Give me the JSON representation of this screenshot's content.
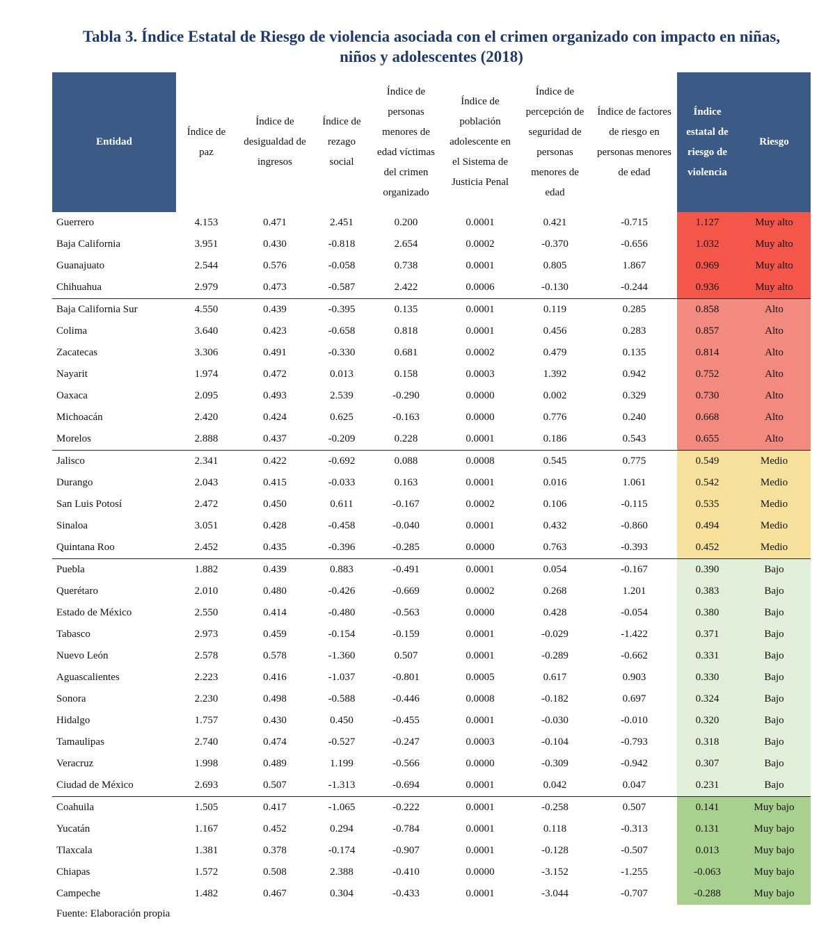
{
  "title": "Tabla 3. Índice Estatal de Riesgo de violencia asociada con el crimen organizado con impacto en niñas, niños y adolescentes (2018)",
  "table": {
    "headers": [
      "Entidad",
      "Índice de paz",
      "Índice de desigualdad de ingresos",
      "Índice de rezago social",
      "Índice de personas menores de edad víctimas del crimen organizado",
      "Índice de población adolescente en el Sistema de Justicia Penal",
      "Índice de percepción de seguridad de personas menores de edad",
      "Índice de factores de riesgo en personas menores de edad",
      "Índice estatal de riesgo de violencia",
      "Riesgo"
    ],
    "groups": [
      {
        "color": "#f4574a",
        "rows": [
          [
            "Guerrero",
            "4.153",
            "0.471",
            "2.451",
            "0.200",
            "0.0001",
            "0.421",
            "-0.715",
            "1.127",
            "Muy alto"
          ],
          [
            "Baja California",
            "3.951",
            "0.430",
            "-0.818",
            "2.654",
            "0.0002",
            "-0.370",
            "-0.656",
            "1.032",
            "Muy alto"
          ],
          [
            "Guanajuato",
            "2.544",
            "0.576",
            "-0.058",
            "0.738",
            "0.0001",
            "0.805",
            "1.867",
            "0.969",
            "Muy alto"
          ],
          [
            "Chihuahua",
            "2.979",
            "0.473",
            "-0.587",
            "2.422",
            "0.0006",
            "-0.130",
            "-0.244",
            "0.936",
            "Muy alto"
          ]
        ]
      },
      {
        "color": "#f28a80",
        "rows": [
          [
            "Baja California Sur",
            "4.550",
            "0.439",
            "-0.395",
            "0.135",
            "0.0001",
            "0.119",
            "0.285",
            "0.858",
            "Alto"
          ],
          [
            "Colima",
            "3.640",
            "0.423",
            "-0.658",
            "0.818",
            "0.0001",
            "0.456",
            "0.283",
            "0.857",
            "Alto"
          ],
          [
            "Zacatecas",
            "3.306",
            "0.491",
            "-0.330",
            "0.681",
            "0.0002",
            "0.479",
            "0.135",
            "0.814",
            "Alto"
          ],
          [
            "Nayarit",
            "1.974",
            "0.472",
            "0.013",
            "0.158",
            "0.0003",
            "1.392",
            "0.942",
            "0.752",
            "Alto"
          ],
          [
            "Oaxaca",
            "2.095",
            "0.493",
            "2.539",
            "-0.290",
            "0.0000",
            "0.002",
            "0.329",
            "0.730",
            "Alto"
          ],
          [
            "Michoacán",
            "2.420",
            "0.424",
            "0.625",
            "-0.163",
            "0.0000",
            "0.776",
            "0.240",
            "0.668",
            "Alto"
          ],
          [
            "Morelos",
            "2.888",
            "0.437",
            "-0.209",
            "0.228",
            "0.0001",
            "0.186",
            "0.543",
            "0.655",
            "Alto"
          ]
        ]
      },
      {
        "color": "#f7e19c",
        "rows": [
          [
            "Jalisco",
            "2.341",
            "0.422",
            "-0.692",
            "0.088",
            "0.0008",
            "0.545",
            "0.775",
            "0.549",
            "Medio"
          ],
          [
            "Durango",
            "2.043",
            "0.415",
            "-0.033",
            "0.163",
            "0.0001",
            "0.016",
            "1.061",
            "0.542",
            "Medio"
          ],
          [
            "San Luis Potosí",
            "2.472",
            "0.450",
            "0.611",
            "-0.167",
            "0.0002",
            "0.106",
            "-0.115",
            "0.535",
            "Medio"
          ],
          [
            "Sinaloa",
            "3.051",
            "0.428",
            "-0.458",
            "-0.040",
            "0.0001",
            "0.432",
            "-0.860",
            "0.494",
            "Medio"
          ],
          [
            "Quintana Roo",
            "2.452",
            "0.435",
            "-0.396",
            "-0.285",
            "0.0000",
            "0.763",
            "-0.393",
            "0.452",
            "Medio"
          ]
        ]
      },
      {
        "color": "#e2efda",
        "rows": [
          [
            "Puebla",
            "1.882",
            "0.439",
            "0.883",
            "-0.491",
            "0.0001",
            "0.054",
            "-0.167",
            "0.390",
            "Bajo"
          ],
          [
            "Querétaro",
            "2.010",
            "0.480",
            "-0.426",
            "-0.669",
            "0.0002",
            "0.268",
            "1.201",
            "0.383",
            "Bajo"
          ],
          [
            "Estado de México",
            "2.550",
            "0.414",
            "-0.480",
            "-0.563",
            "0.0000",
            "0.428",
            "-0.054",
            "0.380",
            "Bajo"
          ],
          [
            "Tabasco",
            "2.973",
            "0.459",
            "-0.154",
            "-0.159",
            "0.0001",
            "-0.029",
            "-1.422",
            "0.371",
            "Bajo"
          ],
          [
            "Nuevo León",
            "2.578",
            "0.578",
            "-1.360",
            "0.507",
            "0.0001",
            "-0.289",
            "-0.662",
            "0.331",
            "Bajo"
          ],
          [
            "Aguascalientes",
            "2.223",
            "0.416",
            "-1.037",
            "-0.801",
            "0.0005",
            "0.617",
            "0.903",
            "0.330",
            "Bajo"
          ],
          [
            "Sonora",
            "2.230",
            "0.498",
            "-0.588",
            "-0.446",
            "0.0008",
            "-0.182",
            "0.697",
            "0.324",
            "Bajo"
          ],
          [
            "Hidalgo",
            "1.757",
            "0.430",
            "0.450",
            "-0.455",
            "0.0001",
            "-0.030",
            "-0.010",
            "0.320",
            "Bajo"
          ],
          [
            "Tamaulipas",
            "2.740",
            "0.474",
            "-0.527",
            "-0.247",
            "0.0003",
            "-0.104",
            "-0.793",
            "0.318",
            "Bajo"
          ],
          [
            "Veracruz",
            "1.998",
            "0.489",
            "1.199",
            "-0.566",
            "0.0000",
            "-0.309",
            "-0.942",
            "0.307",
            "Bajo"
          ],
          [
            "Ciudad de México",
            "2.693",
            "0.507",
            "-1.313",
            "-0.694",
            "0.0001",
            "0.042",
            "0.047",
            "0.231",
            "Bajo"
          ]
        ]
      },
      {
        "color": "#a9d08e",
        "rows": [
          [
            "Coahuila",
            "1.505",
            "0.417",
            "-1.065",
            "-0.222",
            "0.0001",
            "-0.258",
            "0.507",
            "0.141",
            "Muy bajo"
          ],
          [
            "Yucatán",
            "1.167",
            "0.452",
            "0.294",
            "-0.784",
            "0.0001",
            "0.118",
            "-0.313",
            "0.131",
            "Muy bajo"
          ],
          [
            "Tlaxcala",
            "1.381",
            "0.378",
            "-0.174",
            "-0.907",
            "0.0001",
            "-0.128",
            "-0.507",
            "0.013",
            "Muy bajo"
          ],
          [
            "Chiapas",
            "1.572",
            "0.508",
            "2.388",
            "-0.410",
            "0.0000",
            "-3.152",
            "-1.255",
            "-0.063",
            "Muy bajo"
          ],
          [
            "Campeche",
            "1.482",
            "0.467",
            "0.304",
            "-0.433",
            "0.0001",
            "-3.044",
            "-0.707",
            "-0.288",
            "Muy bajo"
          ]
        ]
      }
    ]
  },
  "source": "Fuente: Elaboración propia"
}
